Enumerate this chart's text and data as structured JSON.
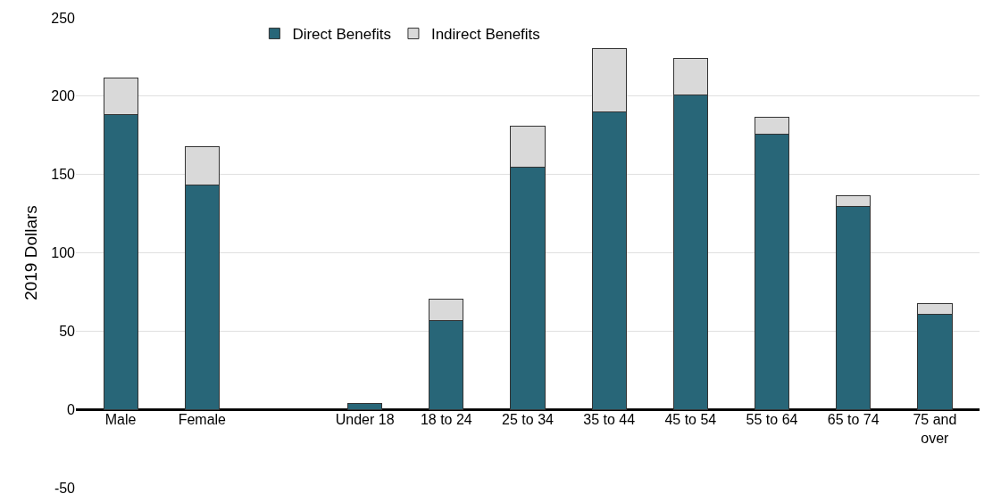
{
  "chart_data": {
    "type": "bar",
    "stacked": true,
    "ylabel": "2019 Dollars",
    "categories": [
      "Male",
      "Female",
      null,
      "Under 18",
      "18 to 24",
      "25 to 34",
      "35 to 44",
      "45 to 54",
      "55 to 64",
      "65 to 74",
      "75 and over"
    ],
    "series": [
      {
        "name": "Direct Benefits",
        "color": "#286678",
        "values": [
          188,
          143.5,
          null,
          4,
          56.5,
          154.5,
          190,
          200.5,
          175.5,
          129.5,
          60.5
        ]
      },
      {
        "name": "Indirect Benefits",
        "color": "#d9d9d9",
        "values": [
          23.5,
          24,
          null,
          null,
          14,
          26.5,
          40.5,
          23.5,
          11,
          7,
          7
        ]
      }
    ],
    "ylim": [
      -50,
      250
    ],
    "yticks": [
      -50,
      0,
      50,
      100,
      150,
      200,
      250
    ],
    "grid": "y",
    "legend": "top"
  }
}
